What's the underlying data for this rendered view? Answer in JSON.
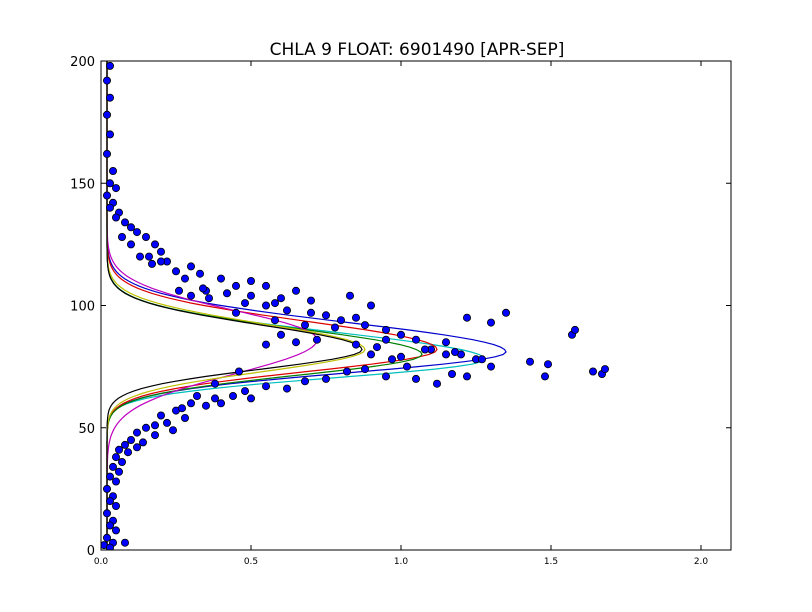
{
  "chart_data": {
    "type": "scatter",
    "title": "CHLA 9 FLOAT: 6901490 [APR-SEP]",
    "xlabel": "",
    "ylabel": "",
    "xlim": [
      0,
      2.1
    ],
    "ylim": [
      0,
      200
    ],
    "x_ticks": [
      {
        "value": 0.0,
        "label": "0.0"
      },
      {
        "value": 0.5,
        "label": "0.5"
      },
      {
        "value": 1.0,
        "label": "1.0"
      },
      {
        "value": 1.5,
        "label": "1.5"
      },
      {
        "value": 2.0,
        "label": "2.0"
      }
    ],
    "y_ticks": [
      {
        "value": 0,
        "label": "0"
      },
      {
        "value": 50,
        "label": "50"
      },
      {
        "value": 100,
        "label": "100"
      },
      {
        "value": 150,
        "label": "150"
      },
      {
        "value": 200,
        "label": "200"
      }
    ],
    "grid": false,
    "legend": "none",
    "colors": {
      "points_fill": "#0000ff",
      "points_edge": "#000000",
      "axes": "#000000"
    },
    "series": [
      {
        "color": "#0000cc",
        "peak_x": 1.35,
        "peak_y": 81,
        "lower_sd": 8.5,
        "upper_sd": 12,
        "base": 0.02
      },
      {
        "color": "#00bfbf",
        "peak_x": 1.28,
        "peak_y": 78,
        "lower_sd": 7.5,
        "upper_sd": 11,
        "base": 0.02
      },
      {
        "color": "#dd0000",
        "peak_x": 1.12,
        "peak_y": 82,
        "lower_sd": 9,
        "upper_sd": 11.5,
        "base": 0.02
      },
      {
        "color": "#007f00",
        "peak_x": 1.07,
        "peak_y": 80,
        "lower_sd": 8.5,
        "upper_sd": 10.5,
        "base": 0.02
      },
      {
        "color": "#bf00bf",
        "peak_x": 0.72,
        "peak_y": 86,
        "lower_sd": 14,
        "upper_sd": 12,
        "base": 0.02
      },
      {
        "color": "#bfbf00",
        "peak_x": 0.88,
        "peak_y": 82,
        "lower_sd": 9,
        "upper_sd": 10.5,
        "base": 0.02
      },
      {
        "color": "#000000",
        "peak_x": 0.87,
        "peak_y": 82,
        "lower_sd": 8,
        "upper_sd": 10,
        "base": 0.02
      }
    ],
    "points": [
      [
        0.03,
        198
      ],
      [
        0.02,
        192
      ],
      [
        0.03,
        185
      ],
      [
        0.02,
        178
      ],
      [
        0.03,
        170
      ],
      [
        0.02,
        162
      ],
      [
        0.04,
        155
      ],
      [
        0.03,
        150
      ],
      [
        0.05,
        148
      ],
      [
        0.02,
        145
      ],
      [
        0.04,
        142
      ],
      [
        0.03,
        140
      ],
      [
        0.06,
        138
      ],
      [
        0.05,
        136
      ],
      [
        0.08,
        134
      ],
      [
        0.1,
        132
      ],
      [
        0.12,
        130
      ],
      [
        0.07,
        128
      ],
      [
        0.15,
        128
      ],
      [
        0.18,
        125
      ],
      [
        0.1,
        125
      ],
      [
        0.2,
        122
      ],
      [
        0.13,
        120
      ],
      [
        0.22,
        118
      ],
      [
        0.17,
        117
      ],
      [
        0.3,
        116
      ],
      [
        0.25,
        114
      ],
      [
        0.33,
        113
      ],
      [
        0.4,
        111
      ],
      [
        0.28,
        111
      ],
      [
        0.5,
        110
      ],
      [
        0.55,
        108
      ],
      [
        0.45,
        108
      ],
      [
        0.35,
        106
      ],
      [
        0.65,
        106
      ],
      [
        0.42,
        105
      ],
      [
        0.5,
        104
      ],
      [
        0.6,
        103
      ],
      [
        0.7,
        102
      ],
      [
        0.83,
        104
      ],
      [
        0.9,
        100
      ],
      [
        0.55,
        100
      ],
      [
        0.62,
        98
      ],
      [
        0.75,
        96
      ],
      [
        0.45,
        97
      ],
      [
        0.58,
        94
      ],
      [
        0.8,
        94
      ],
      [
        0.88,
        92
      ],
      [
        0.68,
        92
      ],
      [
        0.95,
        90
      ],
      [
        1.0,
        88
      ],
      [
        0.6,
        88
      ],
      [
        0.72,
        86
      ],
      [
        0.65,
        85
      ],
      [
        0.55,
        84
      ],
      [
        0.85,
        84
      ],
      [
        0.92,
        83
      ],
      [
        1.05,
        86
      ],
      [
        1.15,
        85
      ],
      [
        1.22,
        95
      ],
      [
        1.3,
        93
      ],
      [
        1.35,
        97
      ],
      [
        1.1,
        82
      ],
      [
        1.2,
        80
      ],
      [
        1.25,
        78
      ],
      [
        1.3,
        75
      ],
      [
        1.17,
        72
      ],
      [
        1.22,
        71
      ],
      [
        1.05,
        70
      ],
      [
        0.95,
        71
      ],
      [
        1.43,
        77
      ],
      [
        1.48,
        71
      ],
      [
        1.49,
        76
      ],
      [
        1.57,
        88
      ],
      [
        1.58,
        90
      ],
      [
        1.64,
        73
      ],
      [
        1.67,
        72
      ],
      [
        1.68,
        74
      ],
      [
        1.15,
        80
      ],
      [
        1.27,
        78
      ],
      [
        0.88,
        74
      ],
      [
        0.82,
        73
      ],
      [
        0.75,
        70
      ],
      [
        0.68,
        69
      ],
      [
        0.55,
        67
      ],
      [
        0.62,
        66
      ],
      [
        0.48,
        65
      ],
      [
        0.44,
        63
      ],
      [
        0.38,
        62
      ],
      [
        0.3,
        60
      ],
      [
        0.35,
        59
      ],
      [
        0.25,
        57
      ],
      [
        0.2,
        55
      ],
      [
        0.28,
        54
      ],
      [
        0.22,
        52
      ],
      [
        0.18,
        51
      ],
      [
        0.15,
        50
      ],
      [
        0.24,
        49
      ],
      [
        0.12,
        48
      ],
      [
        0.18,
        47
      ],
      [
        0.1,
        45
      ],
      [
        0.14,
        44
      ],
      [
        0.08,
        43
      ],
      [
        0.12,
        42
      ],
      [
        0.06,
        41
      ],
      [
        0.09,
        40
      ],
      [
        0.05,
        38
      ],
      [
        0.07,
        36
      ],
      [
        0.04,
        34
      ],
      [
        0.06,
        32
      ],
      [
        0.03,
        30
      ],
      [
        0.05,
        28
      ],
      [
        0.02,
        25
      ],
      [
        0.04,
        22
      ],
      [
        0.03,
        20
      ],
      [
        0.05,
        18
      ],
      [
        0.02,
        15
      ],
      [
        0.04,
        12
      ],
      [
        0.03,
        10
      ],
      [
        0.05,
        8
      ],
      [
        0.02,
        5
      ],
      [
        0.04,
        3
      ],
      [
        0.01,
        2
      ],
      [
        0.08,
        3
      ],
      [
        0.03,
        1
      ],
      [
        0.4,
        60
      ],
      [
        0.5,
        62
      ],
      [
        0.46,
        73
      ],
      [
        0.26,
        106
      ],
      [
        0.34,
        107
      ],
      [
        0.3,
        104
      ],
      [
        0.2,
        118
      ],
      [
        0.16,
        120
      ],
      [
        0.36,
        103
      ],
      [
        0.48,
        101
      ],
      [
        0.58,
        101
      ],
      [
        0.7,
        97
      ],
      [
        0.78,
        91
      ],
      [
        0.85,
        95
      ],
      [
        0.95,
        86
      ],
      [
        1.08,
        82
      ],
      [
        1.0,
        79
      ],
      [
        1.12,
        68
      ],
      [
        1.02,
        75
      ],
      [
        0.97,
        78
      ],
      [
        0.9,
        80
      ],
      [
        1.18,
        81
      ],
      [
        0.38,
        68
      ],
      [
        0.32,
        63
      ],
      [
        0.27,
        58
      ]
    ]
  }
}
